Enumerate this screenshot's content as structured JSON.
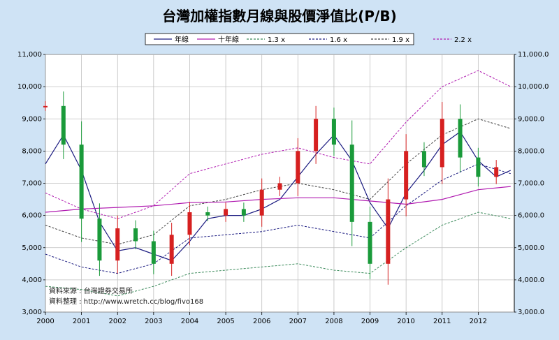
{
  "colors": {
    "background": "#CFE3F5",
    "plot_background": "#FFFFFF",
    "up": "#D62020",
    "down": "#1A9A3A",
    "annual_ma": "#1A1A80",
    "decade_ma": "#B01AB0",
    "pb_1_3": "#3A8A5A",
    "pb_1_6": "#1A1A80",
    "pb_1_9": "#404040",
    "pb_2_2": "#B01AB0"
  },
  "chart_data": {
    "type": "candlestick",
    "title": "台灣加權指數月線與股價淨值比(P/B)",
    "xlabel": "",
    "ylabel": "",
    "ylim": [
      3000,
      11000
    ],
    "yticks_left": [
      "3,000",
      "4,000",
      "5,000",
      "6,000",
      "7,000",
      "8,000",
      "9,000",
      "10,000",
      "11,000"
    ],
    "yticks_right": [
      "3,000.0",
      "4,000.0",
      "5,000.0",
      "6,000.0",
      "7,000.0",
      "8,000.0",
      "9,000.0",
      "10,000.0",
      "11,000.0"
    ],
    "ytick_values": [
      3000,
      4000,
      5000,
      6000,
      7000,
      8000,
      9000,
      10000,
      11000
    ],
    "xticks": [
      "2000",
      "2001",
      "2002",
      "2003",
      "2004",
      "2005",
      "2006",
      "2007",
      "2008",
      "2009",
      "2010",
      "2011",
      "2012"
    ],
    "xlim": [
      2000.0,
      2013.0
    ],
    "grid": true,
    "legend_position": "top",
    "legend": [
      "年線",
      "十年線",
      "1.3 x",
      "1.6 x",
      "1.9 x",
      "2.2 x"
    ],
    "series": [
      {
        "name": "月線",
        "type": "candlestick",
        "x": [
          2000.0,
          2000.5,
          2001.0,
          2001.5,
          2002.0,
          2002.5,
          2003.0,
          2003.5,
          2004.0,
          2004.5,
          2005.0,
          2005.5,
          2006.0,
          2006.5,
          2007.0,
          2007.5,
          2008.0,
          2008.5,
          2009.0,
          2009.5,
          2010.0,
          2010.5,
          2011.0,
          2011.5,
          2012.0,
          2012.5
        ],
        "close": [
          9400,
          8200,
          5900,
          4600,
          5600,
          5200,
          4500,
          5400,
          6100,
          6000,
          6200,
          6000,
          6800,
          7000,
          8000,
          9000,
          8200,
          5800,
          4500,
          6500,
          8000,
          7500,
          9000,
          7800,
          7200,
          7500
        ]
      },
      {
        "name": "年線",
        "type": "line",
        "x": [
          2000.0,
          2000.5,
          2001.0,
          2001.5,
          2002.0,
          2002.5,
          2003.0,
          2003.5,
          2004.0,
          2004.5,
          2005.0,
          2005.5,
          2006.0,
          2006.5,
          2007.0,
          2007.5,
          2008.0,
          2008.5,
          2009.0,
          2009.5,
          2010.0,
          2010.5,
          2011.0,
          2011.5,
          2012.0,
          2012.5,
          2012.9
        ],
        "values": [
          7600,
          8500,
          7400,
          5800,
          4900,
          5000,
          4800,
          4600,
          5200,
          5900,
          6000,
          6000,
          6200,
          6500,
          7200,
          7900,
          8500,
          7700,
          6400,
          5600,
          6700,
          7400,
          8200,
          8600,
          7700,
          7200,
          7400
        ]
      },
      {
        "name": "十年線",
        "type": "line",
        "x": [
          2000.0,
          2001.0,
          2002.0,
          2003.0,
          2004.0,
          2005.0,
          2006.0,
          2007.0,
          2008.0,
          2009.0,
          2010.0,
          2011.0,
          2012.0,
          2012.9
        ],
        "values": [
          6100,
          6200,
          6250,
          6300,
          6400,
          6420,
          6500,
          6550,
          6550,
          6450,
          6350,
          6500,
          6800,
          6900
        ]
      },
      {
        "name": "1.3 x",
        "type": "line",
        "x": [
          2000.0,
          2001.0,
          2002.0,
          2003.0,
          2004.0,
          2005.0,
          2006.0,
          2007.0,
          2008.0,
          2009.0,
          2010.0,
          2011.0,
          2012.0,
          2012.9
        ],
        "values": [
          3800,
          3700,
          3500,
          3800,
          4200,
          4300,
          4400,
          4500,
          4300,
          4200,
          5000,
          5700,
          6100,
          5900
        ]
      },
      {
        "name": "1.6 x",
        "type": "line",
        "x": [
          2000.0,
          2001.0,
          2002.0,
          2003.0,
          2004.0,
          2005.0,
          2006.0,
          2007.0,
          2008.0,
          2009.0,
          2010.0,
          2011.0,
          2012.0,
          2012.9
        ],
        "values": [
          4800,
          4400,
          4200,
          4500,
          5300,
          5400,
          5500,
          5700,
          5500,
          5300,
          6300,
          7100,
          7600,
          7300
        ]
      },
      {
        "name": "1.9 x",
        "type": "line",
        "x": [
          2000.0,
          2001.0,
          2002.0,
          2003.0,
          2004.0,
          2005.0,
          2006.0,
          2007.0,
          2008.0,
          2009.0,
          2010.0,
          2011.0,
          2012.0,
          2012.9
        ],
        "values": [
          5700,
          5300,
          5100,
          5400,
          6300,
          6500,
          6800,
          7000,
          6800,
          6500,
          7600,
          8500,
          9000,
          8700
        ]
      },
      {
        "name": "2.2 x",
        "type": "line",
        "x": [
          2000.0,
          2001.0,
          2002.0,
          2003.0,
          2004.0,
          2005.0,
          2006.0,
          2007.0,
          2008.0,
          2009.0,
          2010.0,
          2011.0,
          2012.0,
          2012.9
        ],
        "values": [
          6700,
          6200,
          5900,
          6300,
          7300,
          7600,
          7900,
          8100,
          7800,
          7600,
          8900,
          10000,
          10500,
          10000
        ]
      }
    ]
  },
  "notes": {
    "source": "資料來源 : 台灣證券交易所",
    "compiled": "資料整理 : http://www.wretch.cc/blog/fivo168"
  }
}
